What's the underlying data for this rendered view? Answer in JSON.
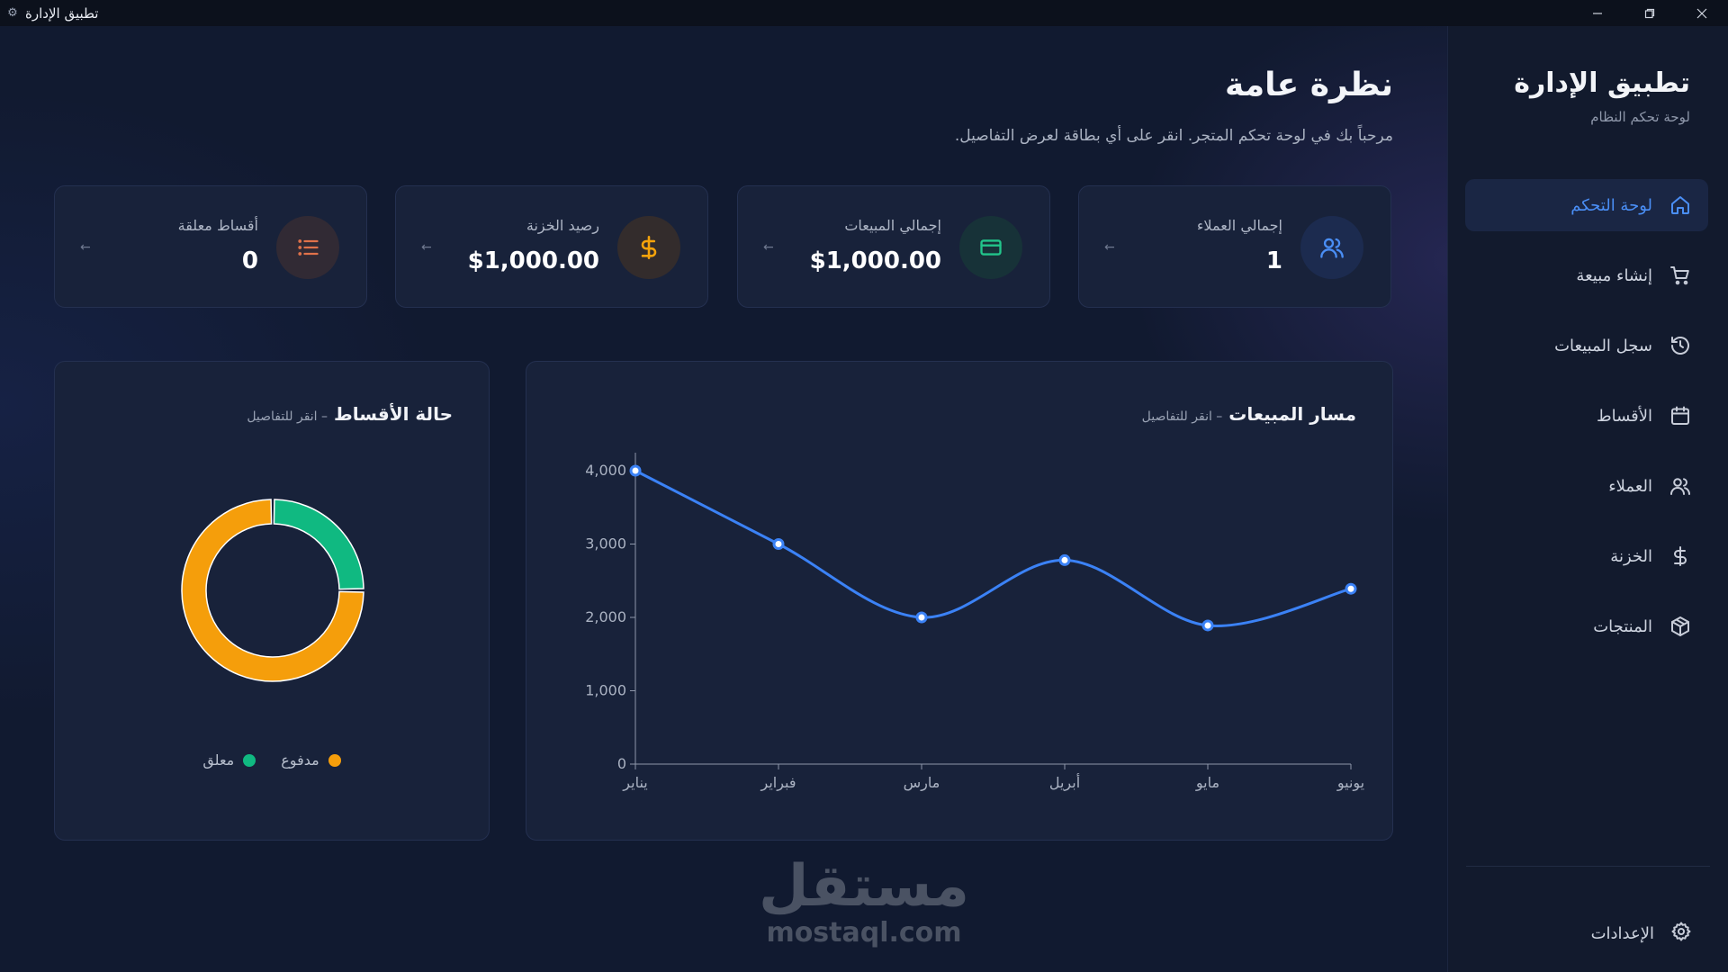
{
  "window": {
    "title": "تطبيق الإدارة",
    "icon": "gear-icon"
  },
  "sidebar": {
    "brand_title": "تطبيق الإدارة",
    "brand_subtitle": "لوحة تحكم النظام",
    "items": [
      {
        "label": "لوحة التحكم",
        "icon": "home-icon",
        "active": true
      },
      {
        "label": "إنشاء مبيعة",
        "icon": "cart-icon",
        "active": false
      },
      {
        "label": "سجل المبيعات",
        "icon": "history-icon",
        "active": false
      },
      {
        "label": "الأقساط",
        "icon": "calendar-icon",
        "active": false
      },
      {
        "label": "العملاء",
        "icon": "users-icon",
        "active": false
      },
      {
        "label": "الخزنة",
        "icon": "dollar-icon",
        "active": false
      },
      {
        "label": "المنتجات",
        "icon": "box-icon",
        "active": false
      }
    ],
    "settings_label": "الإعدادات"
  },
  "header": {
    "title": "نظرة عامة",
    "subtitle": "مرحباً بك في لوحة تحكم المتجر. انقر على أي بطاقة لعرض التفاصيل."
  },
  "cards": [
    {
      "label": "إجمالي العملاء",
      "value": "1",
      "icon": "users-icon",
      "color": "#4a8ef5"
    },
    {
      "label": "إجمالي المبيعات",
      "value": "$1,000.00",
      "icon": "card-icon",
      "color": "#22c58b"
    },
    {
      "label": "رصيد الخزنة",
      "value": "$1,000.00",
      "icon": "dollar-icon",
      "color": "#f5a30b"
    },
    {
      "label": "أقساط معلقة",
      "value": "0",
      "icon": "list-icon",
      "color": "#e0724a"
    }
  ],
  "sales_panel": {
    "title": "مسار المبيعات",
    "hint": "– انقر للتفاصيل"
  },
  "installments_panel": {
    "title": "حالة الأقساط",
    "hint": "– انقر للتفاصيل"
  },
  "chart_data": [
    {
      "type": "line",
      "categories": [
        "يناير",
        "فبراير",
        "مارس",
        "أبريل",
        "مايو",
        "يونيو"
      ],
      "series": [
        {
          "values": [
            4000,
            3000,
            2000,
            2780,
            1890,
            2390
          ],
          "color": "#3b82f6"
        }
      ],
      "yticks": [
        "0",
        "1,000",
        "2,000",
        "3,000",
        "4,000"
      ],
      "ylim": [
        0,
        4000
      ],
      "grid": false
    },
    {
      "type": "pie",
      "donut": true,
      "slices": [
        {
          "label": "معلق",
          "value": 25,
          "color": "#10b981"
        },
        {
          "label": "مدفوع",
          "value": 75,
          "color": "#f59e0b"
        }
      ]
    }
  ],
  "watermark": {
    "arabic": "مستقل",
    "latin": "mostaql.com"
  }
}
